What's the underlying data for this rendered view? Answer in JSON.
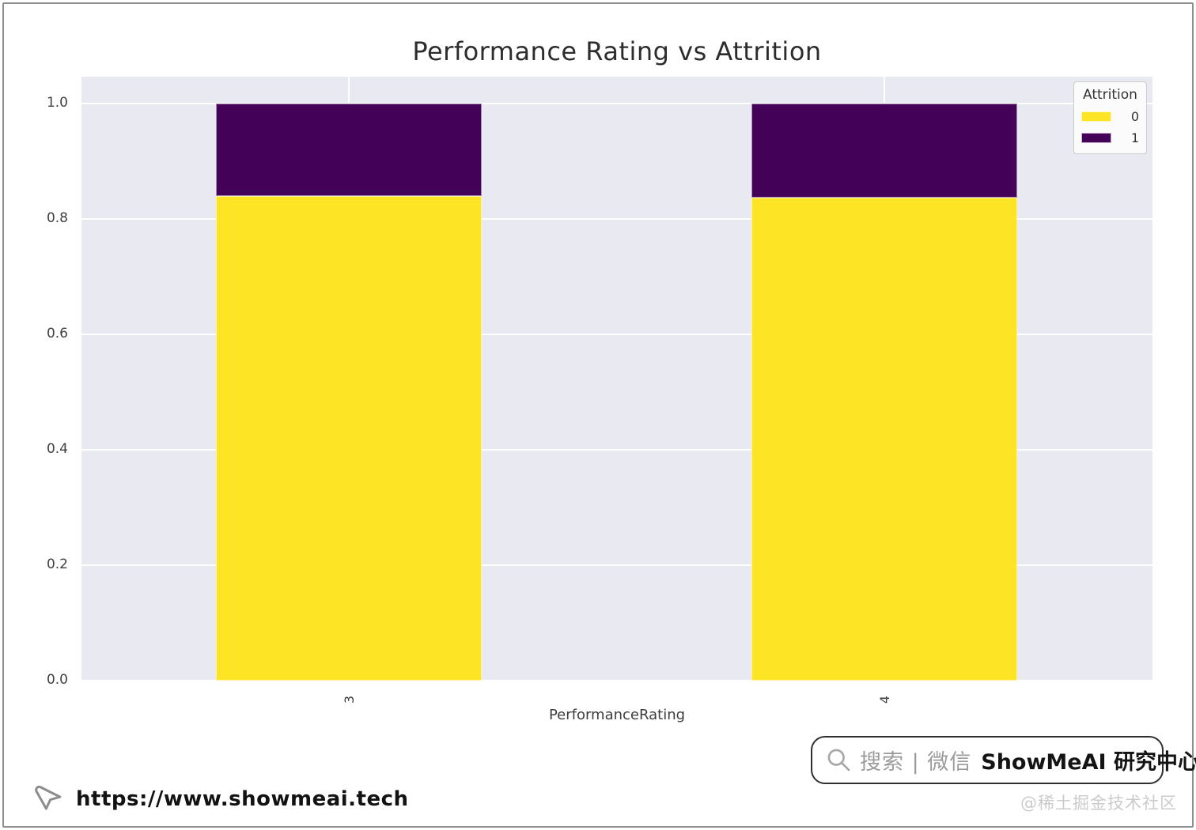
{
  "watermarks": {
    "url": "https://www.showmeai.tech",
    "search_prefix": "搜索 | 微信",
    "search_brand": "ShowMeAI 研究中心",
    "community": "@稀土掘金技术社区"
  },
  "chart_data": {
    "type": "bar",
    "stacked": true,
    "normalized": true,
    "title": "Performance Rating vs Attrition",
    "xlabel": "PerformanceRating",
    "ylabel": "",
    "categories": [
      "3",
      "4"
    ],
    "series": [
      {
        "name": "0",
        "color": "#FDE425",
        "values": [
          0.84,
          0.837
        ]
      },
      {
        "name": "1",
        "color": "#430158",
        "values": [
          0.16,
          0.163
        ]
      }
    ],
    "legend": {
      "title": "Attrition",
      "position": "upper right"
    },
    "yticks": [
      0.0,
      0.2,
      0.4,
      0.6,
      0.8,
      1.0
    ],
    "ylim": [
      0,
      1.05
    ],
    "grid": true,
    "xtick_rotation": 90,
    "plot_bg_color": "#E9E9F1",
    "grid_color": "#FFFFFF"
  }
}
